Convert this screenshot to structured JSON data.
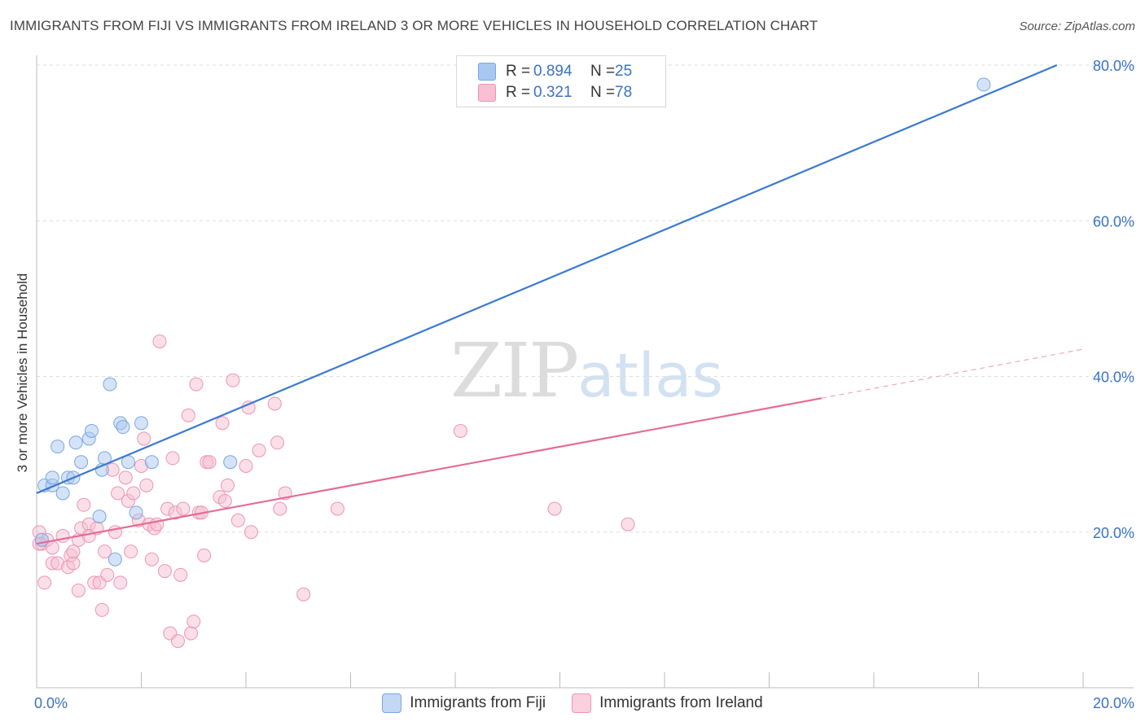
{
  "title": "IMMIGRANTS FROM FIJI VS IMMIGRANTS FROM IRELAND 3 OR MORE VEHICLES IN HOUSEHOLD CORRELATION CHART",
  "source": "Source: ZipAtlas.com",
  "watermark": {
    "zip": "ZIP",
    "atlas": "atlas"
  },
  "legend": {
    "rows": [
      {
        "r_label": "R =",
        "r_value": "0.894",
        "n_label": "N =",
        "n_value": "25",
        "color": "#a9c8f0",
        "border": "#7aa7e0"
      },
      {
        "r_label": "R =",
        "r_value": "0.321",
        "n_label": "N =",
        "n_value": "78",
        "color": "#f8c0d2",
        "border": "#ec95b3"
      }
    ]
  },
  "bottom_legend": [
    {
      "label": "Immigrants from Fiji",
      "color": "#c2d8f5",
      "border": "#7aa7e0"
    },
    {
      "label": "Immigrants from Ireland",
      "color": "#fbd0de",
      "border": "#ec95b3"
    }
  ],
  "chart_data": {
    "type": "scatter",
    "title": "IMMIGRANTS FROM FIJI VS IMMIGRANTS FROM IRELAND 3 OR MORE VEHICLES IN HOUSEHOLD CORRELATION CHART",
    "xlabel": "",
    "ylabel": "3 or more Vehicles in Household",
    "xlim": [
      0,
      20
    ],
    "ylim": [
      0,
      80
    ],
    "x_tick_labels": [
      "0.0%",
      "20.0%"
    ],
    "y_tick_labels": [
      "20.0%",
      "40.0%",
      "60.0%",
      "80.0%"
    ],
    "y_ticks": [
      20,
      40,
      60,
      80
    ],
    "grid": true,
    "legend_position": "top-center",
    "series": [
      {
        "name": "Immigrants from Fiji",
        "color": "#3a79cf",
        "fill": "#a9c8f0",
        "points": [
          [
            0.1,
            19
          ],
          [
            0.15,
            26
          ],
          [
            0.3,
            26
          ],
          [
            0.3,
            27
          ],
          [
            0.4,
            31
          ],
          [
            0.5,
            25
          ],
          [
            0.6,
            27
          ],
          [
            0.7,
            27
          ],
          [
            0.75,
            31.5
          ],
          [
            0.85,
            29
          ],
          [
            1.0,
            32
          ],
          [
            1.05,
            33
          ],
          [
            1.2,
            22
          ],
          [
            1.25,
            28
          ],
          [
            1.3,
            29.5
          ],
          [
            1.4,
            39
          ],
          [
            1.5,
            16.5
          ],
          [
            1.6,
            34
          ],
          [
            1.65,
            33.5
          ],
          [
            1.75,
            29
          ],
          [
            1.9,
            22.5
          ],
          [
            2.0,
            34
          ],
          [
            2.2,
            29
          ],
          [
            3.7,
            29
          ],
          [
            18.1,
            77.5
          ]
        ],
        "trend": {
          "x0": 0,
          "y0": 25,
          "x1": 19.5,
          "y1": 80
        }
      },
      {
        "name": "Immigrants from Ireland",
        "color": "#e56a94",
        "fill": "#f8c0d2",
        "points": [
          [
            0.05,
            20
          ],
          [
            0.1,
            18.5
          ],
          [
            0.15,
            13.5
          ],
          [
            0.2,
            19
          ],
          [
            0.3,
            18
          ],
          [
            0.3,
            16
          ],
          [
            0.4,
            16
          ],
          [
            0.5,
            19.5
          ],
          [
            0.6,
            15.5
          ],
          [
            0.65,
            17
          ],
          [
            0.7,
            16
          ],
          [
            0.7,
            17.5
          ],
          [
            0.8,
            19
          ],
          [
            0.8,
            12.5
          ],
          [
            0.85,
            20.5
          ],
          [
            0.9,
            23.5
          ],
          [
            1.0,
            21
          ],
          [
            1.0,
            19.5
          ],
          [
            1.1,
            13.5
          ],
          [
            1.15,
            20.5
          ],
          [
            1.2,
            13.5
          ],
          [
            1.25,
            10
          ],
          [
            1.3,
            17.5
          ],
          [
            1.35,
            14.5
          ],
          [
            1.45,
            28
          ],
          [
            1.5,
            20
          ],
          [
            1.55,
            25
          ],
          [
            1.6,
            13.5
          ],
          [
            1.7,
            27
          ],
          [
            1.75,
            24
          ],
          [
            1.8,
            17.5
          ],
          [
            1.85,
            25
          ],
          [
            1.95,
            21.5
          ],
          [
            2.0,
            28.5
          ],
          [
            2.05,
            32
          ],
          [
            2.1,
            26
          ],
          [
            2.15,
            21
          ],
          [
            2.2,
            16.5
          ],
          [
            2.25,
            20.5
          ],
          [
            2.3,
            21
          ],
          [
            2.35,
            44.5
          ],
          [
            2.45,
            15
          ],
          [
            2.5,
            23
          ],
          [
            2.55,
            7
          ],
          [
            2.6,
            29.5
          ],
          [
            2.65,
            22.5
          ],
          [
            2.7,
            6
          ],
          [
            2.75,
            14.5
          ],
          [
            2.8,
            23
          ],
          [
            2.9,
            35
          ],
          [
            2.95,
            7
          ],
          [
            3.0,
            8.5
          ],
          [
            3.05,
            39
          ],
          [
            3.1,
            22.5
          ],
          [
            3.15,
            22.5
          ],
          [
            3.2,
            17
          ],
          [
            3.25,
            29
          ],
          [
            3.3,
            29
          ],
          [
            3.5,
            24.5
          ],
          [
            3.55,
            34
          ],
          [
            3.6,
            24
          ],
          [
            3.65,
            26
          ],
          [
            3.75,
            39.5
          ],
          [
            3.85,
            21.5
          ],
          [
            4.0,
            28.5
          ],
          [
            4.05,
            36
          ],
          [
            4.1,
            20
          ],
          [
            4.25,
            30.5
          ],
          [
            4.55,
            36.5
          ],
          [
            4.6,
            31.5
          ],
          [
            4.65,
            23
          ],
          [
            4.75,
            25
          ],
          [
            5.1,
            12
          ],
          [
            5.75,
            23
          ],
          [
            8.1,
            33
          ],
          [
            9.9,
            23
          ],
          [
            11.3,
            21
          ],
          [
            0.05,
            18.5
          ]
        ],
        "trend": {
          "x0": 0,
          "y0": 18.5,
          "x1": 15.0,
          "y1": 37.2
        },
        "trend_dashed": {
          "x0": 15.0,
          "y0": 37.2,
          "x1": 20.0,
          "y1": 43.5
        }
      }
    ]
  }
}
